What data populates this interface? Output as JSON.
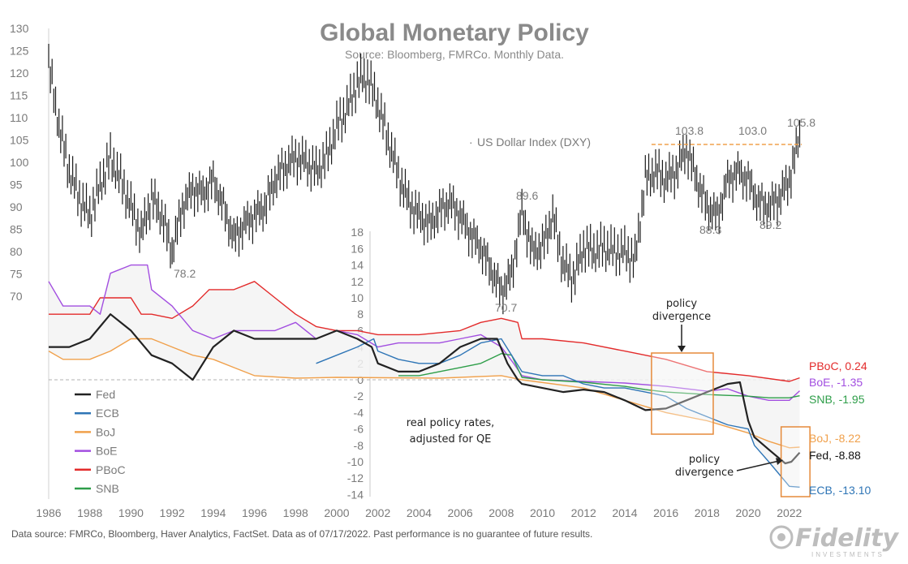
{
  "chart_data": [
    {
      "type": "line",
      "title": "Global Monetary Policy",
      "subtitle": "Source: Bloomberg, FMRCo.  Monthly Data.",
      "series": [
        {
          "name": "US Dollar Index (DXY)",
          "x": [
            1986,
            1986.5,
            1987,
            1987.5,
            1988,
            1988.5,
            1989,
            1989.5,
            1990,
            1990.5,
            1991,
            1991.5,
            1992,
            1992.5,
            1993,
            1993.5,
            1994,
            1994.5,
            1995,
            1995.5,
            1996,
            1996.5,
            1997,
            1997.5,
            1998,
            1998.5,
            1999,
            1999.5,
            2000,
            2000.5,
            2001,
            2001.5,
            2002,
            2002.5,
            2003,
            2003.5,
            2004,
            2004.5,
            2005,
            2005.5,
            2006,
            2006.5,
            2007,
            2007.5,
            2008,
            2008.5,
            2009,
            2009.5,
            2010,
            2010.5,
            2011,
            2011.5,
            2012,
            2012.5,
            2013,
            2013.5,
            2014,
            2014.5,
            2015,
            2015.5,
            2016,
            2016.5,
            2017,
            2017.5,
            2018,
            2018.5,
            2019,
            2019.5,
            2020,
            2020.5,
            2021,
            2021.5,
            2022,
            2022.5
          ],
          "values": [
            122,
            108,
            98,
            92,
            88,
            95,
            101,
            96,
            90,
            84,
            92,
            88,
            80,
            90,
            94,
            93,
            96,
            90,
            83,
            86,
            88,
            90,
            96,
            99,
            101,
            100,
            98,
            101,
            108,
            112,
            118,
            119,
            113,
            105,
            97,
            91,
            88,
            86,
            89,
            91,
            88,
            84,
            81,
            76,
            71,
            75,
            89,
            80,
            81,
            88,
            77,
            74,
            81,
            80,
            81,
            80,
            80,
            78,
            96,
            98,
            96,
            98,
            103,
            96,
            90,
            88,
            96,
            98,
            96,
            91,
            90,
            92,
            96,
            105.8
          ]
        }
      ],
      "annotations": [
        "103.8",
        "103.0",
        "105.8",
        "89.6",
        "78.2",
        "70.7",
        "88.3",
        "89.2"
      ],
      "y_labels": [
        "130",
        "125",
        "120",
        "115",
        "110",
        "105",
        "100",
        "95",
        "90",
        "85",
        "80",
        "75",
        "70"
      ],
      "ylim": [
        70,
        130
      ],
      "reference_line": 104
    },
    {
      "type": "line",
      "note": [
        "real policy rates,",
        "adjusted for QE"
      ],
      "series": [
        {
          "name": "Fed",
          "color": "#222222",
          "end_label": "Fed, -8.88",
          "x": [
            1986,
            1987,
            1988,
            1989,
            1990,
            1991,
            1992,
            1993,
            1994,
            1995,
            1996,
            1997,
            1998,
            1999,
            2000,
            2001,
            2001.7,
            2002,
            2003,
            2004,
            2005,
            2006,
            2007,
            2007.8,
            2008.3,
            2008.8,
            2009,
            2010,
            2011,
            2012,
            2013,
            2014,
            2015,
            2016,
            2017,
            2018,
            2019,
            2019.6,
            2020,
            2020.3,
            2021,
            2021.8,
            2022.1,
            2022.5
          ],
          "values": [
            4,
            4,
            5,
            8,
            6,
            3,
            2,
            0,
            4,
            6,
            5,
            5,
            5,
            5,
            6,
            5,
            4,
            2,
            1,
            1,
            2,
            4,
            5,
            5,
            2,
            0,
            -0.5,
            -1,
            -1.5,
            -1.2,
            -1.5,
            -2.5,
            -3.7,
            -3.5,
            -2.5,
            -1.5,
            -0.5,
            -0.3,
            -5,
            -7,
            -8.5,
            -10.2,
            -10,
            -8.88
          ]
        },
        {
          "name": "ECB",
          "color": "#2e75b6",
          "end_label": "ECB, -13.10",
          "x": [
            1999,
            2000,
            2001,
            2001.8,
            2002,
            2003,
            2004,
            2005,
            2006,
            2007,
            2008,
            2009,
            2010,
            2011,
            2012,
            2013,
            2014,
            2015,
            2016,
            2017,
            2018,
            2019,
            2020,
            2020.3,
            2021,
            2022,
            2022.5
          ],
          "values": [
            2,
            3,
            4,
            5,
            3.5,
            2.5,
            2,
            2,
            3,
            4.5,
            5,
            1,
            0.5,
            0.5,
            -0.5,
            -1,
            -1,
            -1.5,
            -2,
            -3.5,
            -4.5,
            -5.5,
            -6,
            -8,
            -10,
            -13,
            -13.1
          ]
        },
        {
          "name": "BoJ",
          "color": "#f0a04b",
          "end_label": "BoJ, -8.22",
          "x": [
            1986,
            1986.7,
            1988,
            1989,
            1990,
            1991,
            1992,
            1993,
            1994,
            1995,
            1996,
            1998,
            2000,
            2005,
            2008,
            2009,
            2012,
            2014,
            2016,
            2018,
            2020,
            2021,
            2022,
            2022.5
          ],
          "values": [
            3.5,
            2.5,
            2.5,
            3.5,
            5,
            5,
            4,
            3,
            2.5,
            1.5,
            0.5,
            0.2,
            0.3,
            0.2,
            0.5,
            0,
            -1,
            -2.5,
            -4,
            -5,
            -6.5,
            -7.5,
            -8.3,
            -8.22
          ]
        },
        {
          "name": "BoE",
          "color": "#a24ee0",
          "end_label": "BoE, -1.35",
          "x": [
            1986,
            1986.7,
            1987,
            1988,
            1988.5,
            1989,
            1990,
            1990.8,
            1991,
            1992,
            1993,
            1994,
            1995,
            1996,
            1997,
            1998,
            1999,
            2000,
            2001,
            2002,
            2003,
            2004,
            2005,
            2006,
            2007,
            2008,
            2008.6,
            2009,
            2010,
            2012,
            2014,
            2016,
            2018,
            2019,
            2020,
            2021,
            2022,
            2022.5
          ],
          "values": [
            12,
            9,
            9,
            9,
            8,
            13,
            14,
            14,
            11,
            9,
            6,
            5,
            6,
            6,
            6,
            7,
            5,
            6,
            5.5,
            4,
            4.5,
            4.5,
            4.5,
            5,
            5.5,
            4,
            2,
            0.5,
            0,
            -0.2,
            -0.4,
            -0.8,
            -1.4,
            -1.1,
            -2,
            -2.5,
            -2.5,
            -1.35
          ]
        },
        {
          "name": "PBoC",
          "color": "#e32b2b",
          "end_label": "PBoC, 0.24",
          "x": [
            1986,
            1988,
            1988.5,
            1990,
            1990.5,
            1991,
            1992,
            1993,
            1993.8,
            1994,
            1995,
            1996,
            1997,
            1998,
            1999,
            2000,
            2001,
            2002,
            2004,
            2006,
            2007,
            2008,
            2008.8,
            2009,
            2010,
            2012,
            2014,
            2016,
            2018,
            2020,
            2022,
            2022.5
          ],
          "values": [
            8,
            8,
            10,
            10,
            8,
            8,
            7.5,
            9,
            11,
            11,
            11,
            12,
            10,
            8,
            6.5,
            6,
            6,
            5.5,
            5.5,
            6,
            7,
            7.5,
            7,
            5,
            5,
            4.5,
            3.5,
            2.5,
            1,
            0.5,
            -0.2,
            0.24
          ]
        },
        {
          "name": "SNB",
          "color": "#2e9e49",
          "end_label": "SNB, -1.95",
          "x": [
            2003,
            2004,
            2005,
            2006,
            2007,
            2008,
            2008.5,
            2009,
            2010,
            2012,
            2014,
            2015,
            2016,
            2018,
            2020,
            2021,
            2022,
            2022.5
          ],
          "values": [
            0.5,
            0.5,
            1,
            1.5,
            2,
            3.2,
            3,
            0.3,
            0,
            -0.3,
            -0.8,
            -1.2,
            -1.5,
            -1.8,
            -2,
            -2.2,
            -2.2,
            -1.95
          ]
        }
      ],
      "y_labels": [
        "18",
        "16",
        "14",
        "12",
        "10",
        "8",
        "6",
        "4",
        "2",
        "0",
        "-2",
        "-4",
        "-6",
        "-8",
        "-10",
        "-12",
        "-14"
      ],
      "ylim": [
        -14,
        18
      ],
      "x_labels": [
        "1986",
        "1988",
        "1990",
        "1992",
        "1994",
        "1996",
        "1998",
        "2000",
        "2002",
        "2004",
        "2006",
        "2008",
        "2010",
        "2012",
        "2014",
        "2016",
        "2018",
        "2020",
        "2022"
      ],
      "xlim": [
        1986,
        2022.6
      ],
      "callouts": [
        {
          "lines": [
            "policy",
            "divergence"
          ],
          "x": [
            2015.3,
            2018.3
          ]
        },
        {
          "lines": [
            "policy",
            "divergence"
          ],
          "x": [
            2021.6,
            2023
          ]
        }
      ]
    }
  ],
  "footer": "Data source: FMRCo, Bloomberg, Haver Analytics, FactSet. Data as of 07/17/2022. Past performance is no guarantee of future results.",
  "brand": {
    "logo_text": "Fidelity",
    "logo_sub": "INVESTMENTS"
  }
}
